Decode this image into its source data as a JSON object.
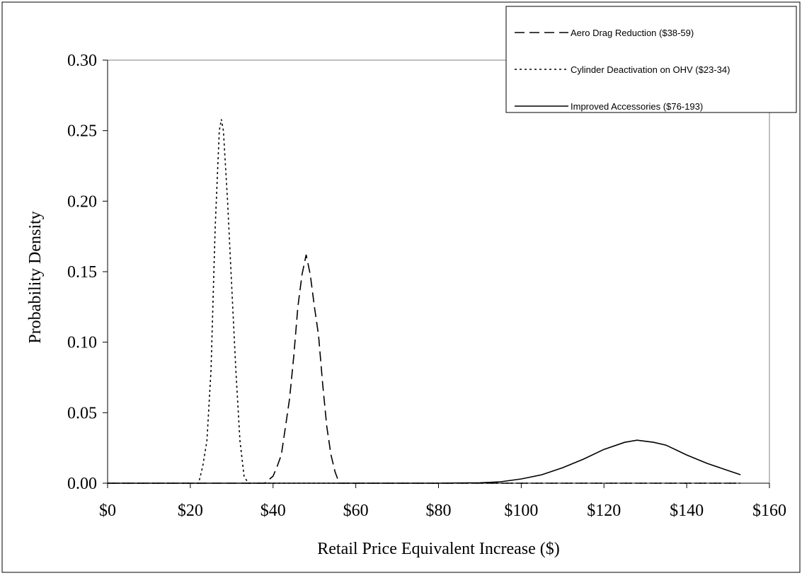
{
  "chart_data": {
    "type": "line",
    "title": "",
    "xlabel": "Retail Price Equivalent Increase ($)",
    "ylabel": "Probability Density",
    "xlim": [
      0,
      160
    ],
    "ylim": [
      0,
      0.3
    ],
    "x_ticks": [
      0,
      20,
      40,
      60,
      80,
      100,
      120,
      140,
      160
    ],
    "x_tick_labels": [
      "$0",
      "$20",
      "$40",
      "$60",
      "$80",
      "$100",
      "$120",
      "$140",
      "$160"
    ],
    "y_ticks": [
      0,
      0.05,
      0.1,
      0.15,
      0.2,
      0.25,
      0.3
    ],
    "y_tick_labels": [
      "0.00",
      "0.05",
      "0.10",
      "0.15",
      "0.20",
      "0.25",
      "0.30"
    ],
    "grid": false,
    "legend_position": "top-right",
    "series": [
      {
        "name": "Aero Drag Reduction ($38-59)",
        "style": "dashed",
        "color": "#000000",
        "x": [
          0,
          20,
          38,
          40,
          41,
          42,
          43,
          44,
          45,
          46,
          47,
          48,
          49,
          50,
          51,
          52,
          53,
          54,
          55,
          56,
          60,
          80,
          100,
          120,
          140,
          153
        ],
        "y": [
          0,
          0,
          0,
          0.005,
          0.012,
          0.02,
          0.04,
          0.06,
          0.09,
          0.125,
          0.148,
          0.162,
          0.148,
          0.125,
          0.105,
          0.07,
          0.04,
          0.02,
          0.008,
          0,
          0,
          0,
          0,
          0,
          0,
          0
        ]
      },
      {
        "name": "Cylinder Deactivation on OHV ($23-34)",
        "style": "dotted",
        "color": "#000000",
        "x": [
          0,
          20,
          22,
          23,
          24,
          25,
          26,
          27,
          27.5,
          28,
          29,
          30,
          31,
          32,
          33,
          34,
          40,
          60,
          80,
          100,
          120,
          140,
          153
        ],
        "y": [
          0,
          0,
          0,
          0.012,
          0.03,
          0.08,
          0.18,
          0.25,
          0.258,
          0.25,
          0.2,
          0.14,
          0.08,
          0.03,
          0.005,
          0,
          0,
          0,
          0,
          0,
          0,
          0,
          0
        ]
      },
      {
        "name": "Improved Accessories ($76-193)",
        "style": "solid",
        "color": "#000000",
        "x": [
          0,
          20,
          40,
          60,
          80,
          90,
          95,
          100,
          105,
          110,
          115,
          120,
          125,
          128,
          132,
          135,
          140,
          145,
          150,
          153
        ],
        "y": [
          0,
          0,
          0,
          0,
          0,
          0.0003,
          0.001,
          0.003,
          0.006,
          0.011,
          0.017,
          0.024,
          0.029,
          0.0305,
          0.029,
          0.027,
          0.02,
          0.014,
          0.009,
          0.006
        ]
      }
    ]
  }
}
